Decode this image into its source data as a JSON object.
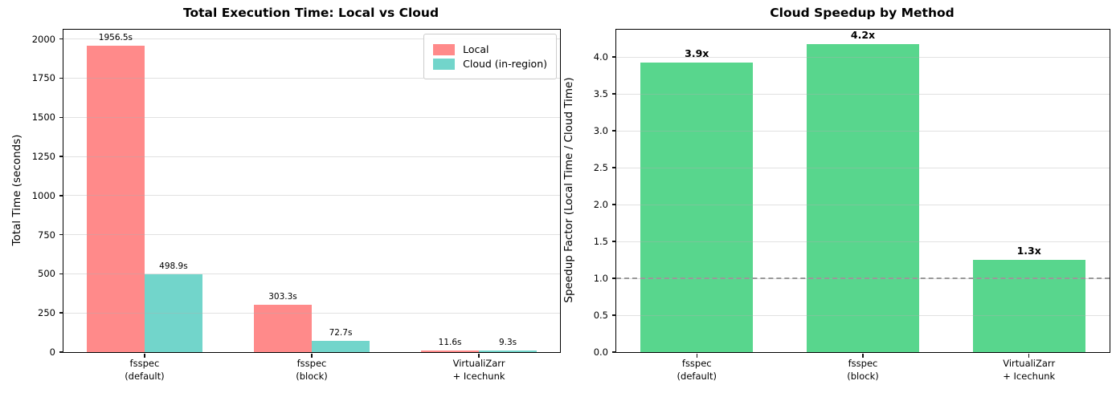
{
  "chart_data": [
    {
      "type": "bar",
      "title": "Total Execution Time: Local vs Cloud",
      "ylabel": "Total Time (seconds)",
      "xlabel": "",
      "categories": [
        "fsspec\n(default)",
        "fsspec\n(block)",
        "VirtualiZarr\n+ Icechunk"
      ],
      "series": [
        {
          "name": "Local",
          "color": "#ff8a8a",
          "values": [
            1956.5,
            303.3,
            11.6
          ],
          "value_labels": [
            "1956.5s",
            "303.3s",
            "11.6s"
          ]
        },
        {
          "name": "Cloud (in-region)",
          "color": "#72d5cb",
          "values": [
            498.9,
            72.7,
            9.3
          ],
          "value_labels": [
            "498.9s",
            "72.7s",
            "9.3s"
          ]
        }
      ],
      "ylim": [
        0,
        2060
      ],
      "yticks": [
        [
          0,
          "0"
        ],
        [
          250,
          "250"
        ],
        [
          500,
          "500"
        ],
        [
          750,
          "750"
        ],
        [
          1000,
          "1000"
        ],
        [
          1250,
          "1250"
        ],
        [
          1500,
          "1500"
        ],
        [
          1750,
          "1750"
        ],
        [
          2000,
          "2000"
        ]
      ],
      "grid": true,
      "legend": {
        "position": "upper right",
        "items": [
          "Local",
          "Cloud (in-region)"
        ]
      }
    },
    {
      "type": "bar",
      "title": "Cloud Speedup by Method",
      "ylabel": "Speedup Factor (Local Time / Cloud Time)",
      "xlabel": "",
      "categories": [
        "fsspec\n(default)",
        "fsspec\n(block)",
        "VirtualiZarr\n+ Icechunk"
      ],
      "series": [
        {
          "name": "Speedup",
          "color": "#58d68d",
          "values": [
            3.92,
            4.17,
            1.25
          ],
          "value_labels": [
            "3.9x",
            "4.2x",
            "1.3x"
          ]
        }
      ],
      "ylim": [
        0,
        4.37
      ],
      "yticks": [
        [
          0,
          "0.0"
        ],
        [
          0.5,
          "0.5"
        ],
        [
          1,
          "1.0"
        ],
        [
          1.5,
          "1.5"
        ],
        [
          2,
          "2.0"
        ],
        [
          2.5,
          "2.5"
        ],
        [
          3,
          "3.0"
        ],
        [
          3.5,
          "3.5"
        ],
        [
          4,
          "4.0"
        ]
      ],
      "grid": true,
      "reference_line": {
        "y": 1.0,
        "style": "dashed",
        "color": "#999999"
      }
    }
  ]
}
